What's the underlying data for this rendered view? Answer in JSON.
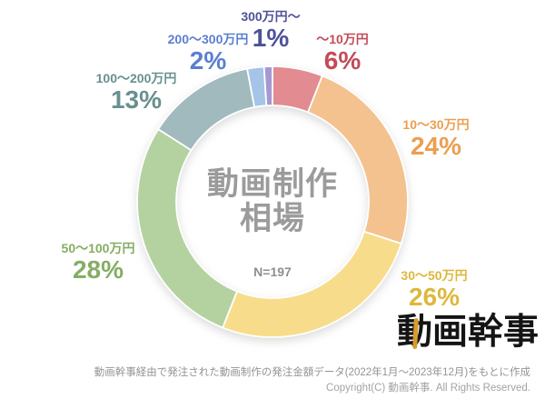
{
  "chart_data": {
    "type": "pie",
    "subtype": "donut",
    "title": "動画制作相場",
    "title_lines": [
      "動画制作",
      "相場"
    ],
    "sample_note": "N=197",
    "start_angle_deg": 0,
    "direction": "clockwise",
    "outer_radius": 149,
    "inner_radius": 106,
    "gap_stroke_color": "#ffffff",
    "segments": [
      {
        "label": "～10万円",
        "value": 6,
        "pct_label": "6%",
        "arc_color": "#e28b91",
        "text_color": "#c44a58"
      },
      {
        "label": "10～30万円",
        "value": 24,
        "pct_label": "24%",
        "arc_color": "#f3c28e",
        "text_color": "#ec9f50"
      },
      {
        "label": "30～50万円",
        "value": 26,
        "pct_label": "26%",
        "arc_color": "#f7dc8c",
        "text_color": "#ddb83d"
      },
      {
        "label": "50～100万円",
        "value": 28,
        "pct_label": "28%",
        "arc_color": "#b4d2a0",
        "text_color": "#85ad64"
      },
      {
        "label": "100～200万円",
        "value": 13,
        "pct_label": "13%",
        "arc_color": "#a0babd",
        "text_color": "#68908f"
      },
      {
        "label": "200～300万円",
        "value": 2,
        "pct_label": "2%",
        "arc_color": "#a6c4e8",
        "text_color": "#5a7fd0"
      },
      {
        "label": "300万円～",
        "value": 1,
        "pct_label": "1%",
        "arc_color": "#a698d1",
        "text_color": "#4e5299"
      }
    ]
  },
  "footer": {
    "source_note": "動画幹事経由で発注された動画制作の発注金額データ(2022年1月～2023年12月)をもとに作成",
    "copyright": "Copyright(C) 動画幹事. All Rights Reserved."
  },
  "logo": {
    "text": "動画幹事",
    "accent_color": "#d99b2e"
  }
}
